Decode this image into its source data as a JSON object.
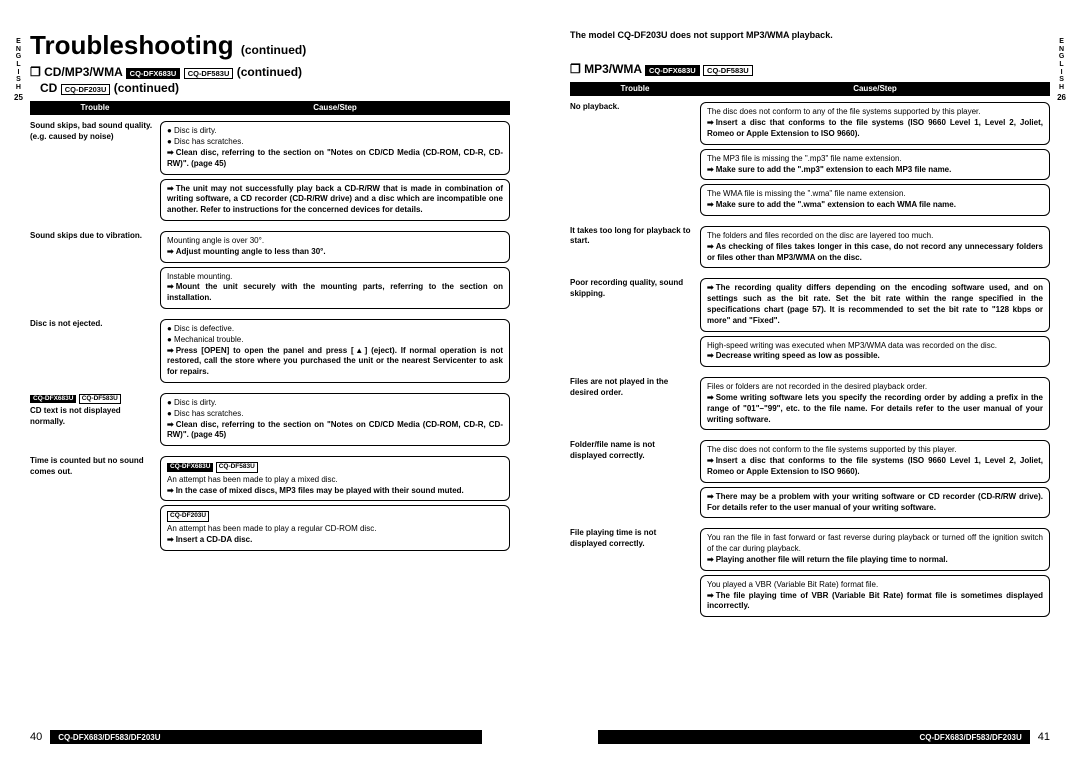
{
  "meta": {
    "lang": "ENGLISH",
    "leftPage": "25",
    "rightPage": "26",
    "footerLeft": "40",
    "footerRight": "41",
    "footerBar": "CQ-DFX683/DF583/DF203U"
  },
  "titles": {
    "main": "Troubleshooting",
    "cont": "(continued)",
    "note": "The model CQ-DF203U does not support MP3/WMA playback."
  },
  "left": {
    "hdr1": {
      "prefix": "❐ CD/MP3/WMA",
      "b1": "CQ-DFX683U",
      "b2": "CQ-DF583U",
      "suffix": "(continued)"
    },
    "hdr2": {
      "prefix": "CD",
      "b1": "CQ-DF203U",
      "suffix": "(continued)"
    },
    "cols": {
      "c1": "Trouble",
      "c2": "Cause/Step"
    },
    "rows": [
      {
        "t": "Sound skips, bad sound quality. (e.g. caused by noise)",
        "boxes": [
          {
            "lines": [
              "● Disc is dirty.",
              "● Disc has scratches."
            ],
            "arrow": "Clean disc, referring to the section on \"Notes on CD/CD Media (CD-ROM, CD-R, CD-RW)\". (page 45)"
          },
          {
            "arrow": "The unit may not successfully play back a CD-R/RW that is made in combination of writing software, a CD recorder (CD-R/RW drive) and a disc which are incompatible one another. Refer to instructions for the concerned devices for details."
          }
        ]
      },
      {
        "t": "Sound skips due to vibration.",
        "boxes": [
          {
            "lines": [
              "Mounting angle is over 30°."
            ],
            "arrow": "Adjust mounting angle to less than 30°."
          },
          {
            "lines": [
              "Instable mounting."
            ],
            "arrow": "Mount the unit securely with the mounting parts, referring to the section on installation."
          }
        ]
      },
      {
        "t": "Disc is not ejected.",
        "boxes": [
          {
            "lines": [
              "● Disc is defective.",
              "● Mechanical trouble."
            ],
            "arrow": "Press [OPEN] to open the panel and press [▲] (eject). If normal operation is not restored, call the store where you purchased the unit or the nearest Servicenter to ask for repairs."
          }
        ]
      },
      {
        "t": "CD text is not displayed normally.",
        "badges": [
          "CQ-DFX683U",
          "CQ-DF583U"
        ],
        "boxes": [
          {
            "lines": [
              "● Disc is dirty.",
              "● Disc has scratches."
            ],
            "arrow": "Clean disc, referring to the section on \"Notes on CD/CD Media (CD-ROM, CD-R, CD-RW)\". (page 45)"
          }
        ]
      },
      {
        "t": "Time is counted but no sound comes out.",
        "boxes": [
          {
            "badges": [
              "CQ-DFX683U",
              "CQ-DF583U"
            ],
            "lines": [
              "An attempt has been made to play a mixed disc."
            ],
            "arrow": "In the case of mixed discs, MP3 files may be played with their sound muted."
          },
          {
            "badgesO": [
              "CQ-DF203U"
            ],
            "lines": [
              "An attempt has been made to play a regular CD-ROM disc."
            ],
            "arrow": "Insert a CD-DA disc."
          }
        ]
      }
    ]
  },
  "right": {
    "hdr": {
      "prefix": "❐ MP3/WMA",
      "b1": "CQ-DFX683U",
      "b2": "CQ-DF583U"
    },
    "cols": {
      "c1": "Trouble",
      "c2": "Cause/Step"
    },
    "rows": [
      {
        "t": "No playback.",
        "boxes": [
          {
            "lines": [
              "The disc does not conform to any of the file systems supported by this player."
            ],
            "arrow": "Insert a disc that conforms to the file systems (ISO 9660 Level 1, Level 2, Joliet, Romeo or Apple Extension to ISO 9660)."
          },
          {
            "lines": [
              "The MP3 file is missing the \".mp3\" file name extension."
            ],
            "arrow": "Make sure to add the \".mp3\" extension to each MP3 file name."
          },
          {
            "lines": [
              "The WMA file is missing the \".wma\" file name extension."
            ],
            "arrow": "Make sure to add the \".wma\" extension to each WMA file name."
          }
        ]
      },
      {
        "t": "It takes too long for playback to start.",
        "boxes": [
          {
            "lines": [
              "The folders and files recorded on the disc are layered too much."
            ],
            "arrow": "As checking of files takes longer in this case, do not record any unnecessary folders or files other than MP3/WMA on the disc."
          }
        ]
      },
      {
        "t": "Poor recording quality, sound skipping.",
        "boxes": [
          {
            "arrow": "The recording quality differs depending on the encoding software used, and on settings such as the bit rate. Set the bit rate within the range specified in the specifications chart (page 57).\nIt is recommended to set the bit rate to \"128 kbps or more\" and \"Fixed\"."
          },
          {
            "lines": [
              "High-speed writing was executed when MP3/WMA data was recorded on the disc."
            ],
            "arrow": "Decrease writing speed as low as possible."
          }
        ]
      },
      {
        "t": "Files are not played in the desired order.",
        "boxes": [
          {
            "lines": [
              "Files or folders are not recorded in the desired playback order."
            ],
            "arrow": "Some writing software lets you specify the recording order by adding a prefix in the range of \"01\"–\"99\", etc. to the file name. For details refer to the user manual of your writing software."
          }
        ]
      },
      {
        "t": "Folder/file name is not displayed correctly.",
        "boxes": [
          {
            "lines": [
              "The disc does not conform to the file systems supported by this player."
            ],
            "arrow": "Insert a disc that conforms to the file systems (ISO 9660 Level 1, Level 2, Joliet, Romeo or Apple Extension to ISO 9660)."
          },
          {
            "arrow": "There may be a problem with your writing software or CD recorder (CD-R/RW drive). For details refer to the user manual of your writing software."
          }
        ]
      },
      {
        "t": "File playing time is not displayed correctly.",
        "boxes": [
          {
            "lines": [
              "You ran the file in fast forward or fast reverse during playback or turned off the ignition switch of the car during playback."
            ],
            "arrow": "Playing another file will return the file playing time to normal."
          },
          {
            "lines": [
              "You played a VBR (Variable Bit Rate) format file."
            ],
            "arrow": "The file playing time of VBR (Variable Bit Rate) format file is sometimes displayed incorrectly."
          }
        ]
      }
    ]
  }
}
